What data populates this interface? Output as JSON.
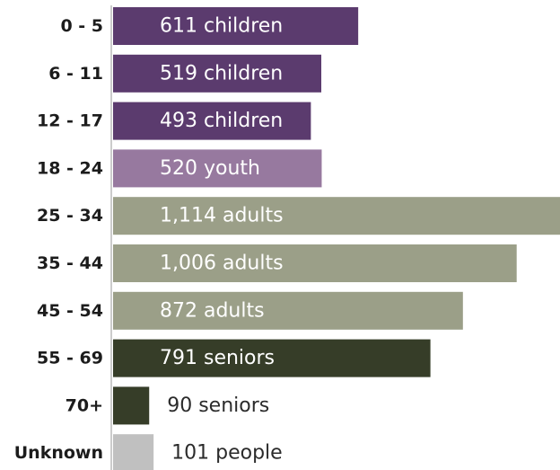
{
  "chart_data": {
    "type": "bar",
    "orientation": "horizontal",
    "categories": [
      "0 - 5",
      "6 - 11",
      "12 - 17",
      "18 - 24",
      "25 - 34",
      "35 - 44",
      "45 - 54",
      "55 - 69",
      "70+",
      "Unknown"
    ],
    "values": [
      611,
      519,
      493,
      520,
      1114,
      1006,
      872,
      791,
      90,
      101
    ],
    "value_labels": [
      "611 children",
      "519 children",
      "493 children",
      "520 youth",
      "1,114 adults",
      "1,006 adults",
      "872 adults",
      "791 seniors",
      "90 seniors",
      "101 people"
    ],
    "groups": [
      "children",
      "children",
      "children",
      "youth",
      "adults",
      "adults",
      "adults",
      "seniors",
      "seniors",
      "people"
    ],
    "colors": {
      "children": "#5b3b6e",
      "youth": "#97799f",
      "adults": "#9b9f88",
      "seniors": "#363d28",
      "people": "#c0c0c0"
    },
    "title": "",
    "xlabel": "",
    "ylabel": "",
    "xlim": [
      0,
      1114
    ],
    "grid": false,
    "legend": "none"
  }
}
